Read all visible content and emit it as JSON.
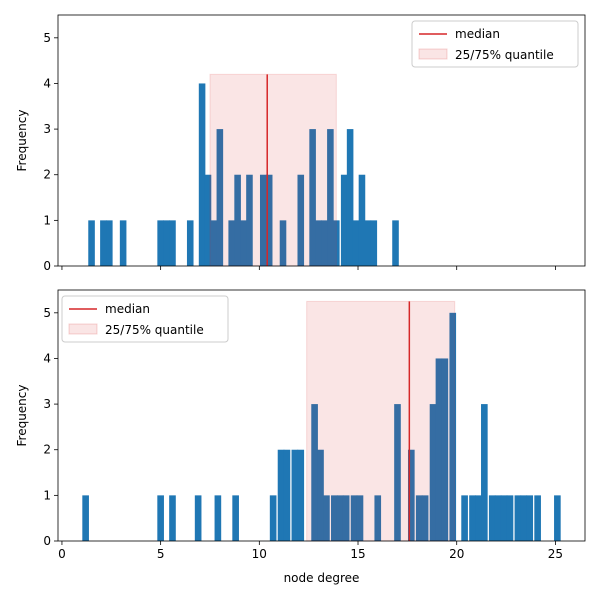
{
  "colors": {
    "bar": "#1f77b4",
    "median": "#d62728",
    "quantile_fill": "#d62728",
    "quantile_alpha": 0.12
  },
  "chart_data": [
    {
      "type": "bar",
      "title": "",
      "xlabel": "",
      "ylabel": "Frequency",
      "xlim": [
        -0.2,
        26.5
      ],
      "ylim": [
        0,
        5.5
      ],
      "yticks": [
        0,
        1,
        2,
        3,
        4,
        5
      ],
      "xticks": [
        0,
        5,
        10,
        15,
        20,
        25
      ],
      "show_xtick_labels": false,
      "bin_width": 0.333,
      "bars": [
        {
          "x": 1.5,
          "y": 1
        },
        {
          "x": 2.1,
          "y": 1
        },
        {
          "x": 2.4,
          "y": 1
        },
        {
          "x": 3.1,
          "y": 1
        },
        {
          "x": 5.0,
          "y": 1
        },
        {
          "x": 5.3,
          "y": 1
        },
        {
          "x": 5.6,
          "y": 1
        },
        {
          "x": 6.5,
          "y": 1
        },
        {
          "x": 7.1,
          "y": 4
        },
        {
          "x": 7.4,
          "y": 2
        },
        {
          "x": 7.7,
          "y": 1
        },
        {
          "x": 8.0,
          "y": 3
        },
        {
          "x": 8.6,
          "y": 1
        },
        {
          "x": 8.9,
          "y": 2
        },
        {
          "x": 9.2,
          "y": 1
        },
        {
          "x": 9.5,
          "y": 2
        },
        {
          "x": 10.2,
          "y": 2
        },
        {
          "x": 10.5,
          "y": 2
        },
        {
          "x": 11.2,
          "y": 1
        },
        {
          "x": 12.1,
          "y": 2
        },
        {
          "x": 12.7,
          "y": 3
        },
        {
          "x": 13.0,
          "y": 1
        },
        {
          "x": 13.3,
          "y": 1
        },
        {
          "x": 13.6,
          "y": 3
        },
        {
          "x": 13.9,
          "y": 1
        },
        {
          "x": 14.3,
          "y": 2
        },
        {
          "x": 14.6,
          "y": 3
        },
        {
          "x": 14.9,
          "y": 1
        },
        {
          "x": 15.2,
          "y": 2
        },
        {
          "x": 15.5,
          "y": 1
        },
        {
          "x": 15.8,
          "y": 1
        },
        {
          "x": 16.9,
          "y": 1
        }
      ],
      "median": 10.4,
      "median_height": 4.2,
      "quantile_range": [
        7.5,
        13.9
      ],
      "quantile_height": 4.2,
      "legend": {
        "position": "upper right",
        "median_label": "median",
        "quantile_label": "25/75% quantile"
      }
    },
    {
      "type": "bar",
      "title": "",
      "xlabel": "node degree",
      "ylabel": "Frequency",
      "xlim": [
        -0.2,
        26.5
      ],
      "ylim": [
        0,
        5.5
      ],
      "yticks": [
        0,
        1,
        2,
        3,
        4,
        5
      ],
      "xticks": [
        0,
        5,
        10,
        15,
        20,
        25
      ],
      "show_xtick_labels": true,
      "bin_width": 0.336,
      "bars": [
        {
          "x": 1.2,
          "y": 1
        },
        {
          "x": 5.0,
          "y": 1
        },
        {
          "x": 5.6,
          "y": 1
        },
        {
          "x": 6.9,
          "y": 1
        },
        {
          "x": 7.9,
          "y": 1
        },
        {
          "x": 8.8,
          "y": 1
        },
        {
          "x": 10.7,
          "y": 1
        },
        {
          "x": 11.1,
          "y": 2
        },
        {
          "x": 11.4,
          "y": 2
        },
        {
          "x": 11.8,
          "y": 2
        },
        {
          "x": 12.1,
          "y": 2
        },
        {
          "x": 12.8,
          "y": 3
        },
        {
          "x": 13.1,
          "y": 2
        },
        {
          "x": 13.4,
          "y": 1
        },
        {
          "x": 13.8,
          "y": 1
        },
        {
          "x": 14.1,
          "y": 1
        },
        {
          "x": 14.4,
          "y": 1
        },
        {
          "x": 14.8,
          "y": 1
        },
        {
          "x": 15.1,
          "y": 1
        },
        {
          "x": 16.0,
          "y": 1
        },
        {
          "x": 17.0,
          "y": 3
        },
        {
          "x": 17.7,
          "y": 2
        },
        {
          "x": 18.1,
          "y": 1
        },
        {
          "x": 18.4,
          "y": 1
        },
        {
          "x": 18.8,
          "y": 3
        },
        {
          "x": 19.1,
          "y": 4
        },
        {
          "x": 19.4,
          "y": 4
        },
        {
          "x": 19.8,
          "y": 5
        },
        {
          "x": 20.4,
          "y": 1
        },
        {
          "x": 20.8,
          "y": 1
        },
        {
          "x": 21.1,
          "y": 1
        },
        {
          "x": 21.4,
          "y": 3
        },
        {
          "x": 21.8,
          "y": 1
        },
        {
          "x": 22.1,
          "y": 1
        },
        {
          "x": 22.4,
          "y": 1
        },
        {
          "x": 22.7,
          "y": 1
        },
        {
          "x": 23.1,
          "y": 1
        },
        {
          "x": 23.4,
          "y": 1
        },
        {
          "x": 23.7,
          "y": 1
        },
        {
          "x": 24.1,
          "y": 1
        },
        {
          "x": 25.1,
          "y": 1
        }
      ],
      "median": 17.6,
      "median_height": 5.25,
      "quantile_range": [
        12.4,
        19.9
      ],
      "quantile_height": 5.25,
      "legend": {
        "position": "upper left",
        "median_label": "median",
        "quantile_label": "25/75% quantile"
      }
    }
  ]
}
